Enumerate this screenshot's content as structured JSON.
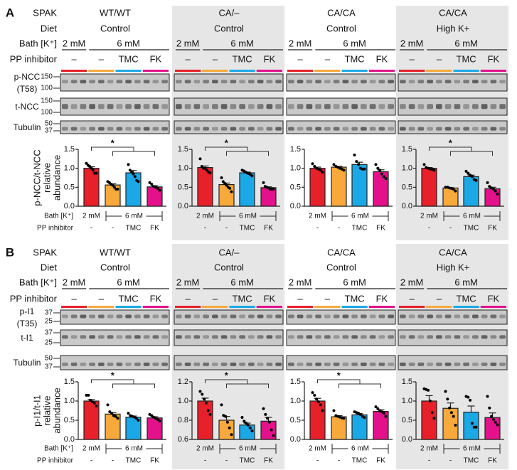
{
  "colors": {
    "lane_groups": [
      "#e8202a",
      "#f7a93b",
      "#1aa9e6",
      "#e3118a"
    ],
    "panel_bg": "#e6e6e6",
    "blot_bg": "#c9c9c9"
  },
  "row_labels": {
    "spak": "SPAK",
    "diet": "Diet",
    "bath": "Bath [K⁺]",
    "pp": "PP inhibitor"
  },
  "groups": [
    {
      "spak": "WT/WT",
      "diet": "Control",
      "bath": [
        "2 mM",
        "6 mM"
      ],
      "pp": [
        "–",
        "–",
        "TMC",
        "FK"
      ]
    },
    {
      "spak": "CA/–",
      "diet": "Control",
      "bath": [
        "2 mM",
        "6 mM"
      ],
      "pp": [
        "–",
        "–",
        "TMC",
        "FK"
      ]
    },
    {
      "spak": "CA/CA",
      "diet": "Control",
      "bath": [
        "2 mM",
        "6 mM"
      ],
      "pp": [
        "–",
        "–",
        "TMC",
        "FK"
      ]
    },
    {
      "spak": "CA/CA",
      "diet": "High K+",
      "bath": [
        "2 mM",
        "6 mM"
      ],
      "pp": [
        "–",
        "–",
        "TMC",
        "FK"
      ]
    }
  ],
  "panels": [
    {
      "letter": "A",
      "blots": [
        {
          "label": [
            "p-NCC",
            "(T58)"
          ],
          "markers": [
            "150",
            "100"
          ]
        },
        {
          "label": [
            "t-NCC"
          ],
          "markers": [
            "150",
            "100"
          ]
        },
        {
          "label": [
            "Tubulin"
          ],
          "markers": [
            "50",
            "37"
          ]
        }
      ]
    },
    {
      "letter": "B",
      "blots": [
        {
          "label": [
            "p-I1",
            "(T35)"
          ],
          "markers": [
            "37",
            "25"
          ]
        },
        {
          "label": [
            "t-I1"
          ],
          "markers": [
            "37",
            "25"
          ]
        },
        {
          "label": [
            "Tubulin"
          ],
          "markers": [
            "50",
            "37"
          ]
        }
      ]
    }
  ],
  "chart_data": [
    {
      "type": "bar",
      "panel": "A",
      "group": "WT/WT",
      "ylabel": [
        "p-NCC/t-NCC",
        "relative",
        "abundance"
      ],
      "categories": [
        "2 mM –",
        "6 mM –",
        "6 mM TMC",
        "6 mM FK"
      ],
      "values": [
        1.0,
        0.56,
        0.88,
        0.51
      ],
      "sem": [
        0.04,
        0.03,
        0.06,
        0.03
      ],
      "points": [
        [
          1.13,
          1.08,
          1.05,
          1.0,
          0.95,
          0.87,
          0.87
        ],
        [
          0.65,
          0.62,
          0.58,
          0.55,
          0.5,
          0.45,
          0.45
        ],
        [
          1.1,
          0.95,
          0.9,
          0.85,
          0.78,
          0.68,
          0.65
        ],
        [
          0.62,
          0.58,
          0.52,
          0.5,
          0.47,
          0.42
        ]
      ],
      "ylim": [
        0,
        1.5
      ],
      "yticks": [
        "0.0",
        "0.5",
        "1.0",
        "1.5"
      ],
      "significance": "*",
      "bath_title": "Bath [K⁺]",
      "pp_title": "PP inhibitor",
      "bath_labels": [
        "2 mM",
        "6 mM"
      ],
      "pp_labels": [
        "-",
        "-",
        "TMC",
        "FK"
      ]
    },
    {
      "type": "bar",
      "panel": "A",
      "group": "CA/–",
      "values": [
        1.02,
        0.57,
        0.88,
        0.49
      ],
      "sem": [
        0.04,
        0.04,
        0.02,
        0.02
      ],
      "points": [
        [
          1.25,
          1.05,
          1.0,
          1.0,
          0.95,
          0.9,
          0.88
        ],
        [
          0.75,
          0.65,
          0.6,
          0.55,
          0.5,
          0.47,
          0.38
        ],
        [
          0.95,
          0.93,
          0.9,
          0.88,
          0.86,
          0.83,
          0.8
        ],
        [
          0.62,
          0.52,
          0.5,
          0.48,
          0.45,
          0.45,
          0.45
        ]
      ],
      "ylim": [
        0,
        1.5
      ],
      "yticks": [
        "0.0",
        "0.5",
        "1.0",
        "1.5"
      ],
      "significance": "*",
      "bath_labels": [
        "2 mM",
        "6 mM"
      ],
      "pp_labels": [
        "-",
        "-",
        "TMC",
        "FK"
      ]
    },
    {
      "type": "bar",
      "panel": "A",
      "group": "CA/CA Control",
      "values": [
        1.0,
        1.03,
        1.1,
        0.91
      ],
      "sem": [
        0.03,
        0.02,
        0.06,
        0.05
      ],
      "points": [
        [
          1.12,
          1.05,
          1.0,
          0.98,
          0.95,
          0.9
        ],
        [
          1.1,
          1.05,
          1.03,
          1.0,
          0.98,
          0.95
        ],
        [
          1.35,
          1.18,
          1.1,
          1.0,
          0.98,
          0.98
        ],
        [
          1.1,
          1.0,
          0.95,
          0.85,
          0.78,
          0.73
        ]
      ],
      "ylim": [
        0,
        1.5
      ],
      "yticks": [
        "0.0",
        "0.5",
        "1.0",
        "1.5"
      ],
      "significance": "",
      "bath_labels": [
        "2 mM",
        "6 mM"
      ],
      "pp_labels": [
        "-",
        "-",
        "TMC",
        "FK"
      ]
    },
    {
      "type": "bar",
      "panel": "A",
      "group": "CA/CA High K+",
      "values": [
        1.0,
        0.48,
        0.78,
        0.46
      ],
      "sem": [
        0.02,
        0.01,
        0.04,
        0.04
      ],
      "points": [
        [
          1.1,
          1.02,
          1.0,
          0.98,
          0.97,
          0.95
        ],
        [
          0.5,
          0.5,
          0.48,
          0.47,
          0.45,
          0.4
        ],
        [
          0.92,
          0.87,
          0.82,
          0.78,
          0.7,
          0.68
        ],
        [
          0.62,
          0.52,
          0.48,
          0.45,
          0.4,
          0.32
        ]
      ],
      "ylim": [
        0,
        1.5
      ],
      "yticks": [
        "0.0",
        "0.5",
        "1.0",
        "1.5"
      ],
      "significance": "*",
      "bath_labels": [
        "2 mM",
        "6 mM"
      ],
      "pp_labels": [
        "-",
        "-",
        "TMC",
        "FK"
      ]
    },
    {
      "type": "bar",
      "panel": "B",
      "group": "WT/WT",
      "ylabel": [
        "p-I1/t-I1",
        "relative",
        "abundance"
      ],
      "values": [
        1.0,
        0.66,
        0.58,
        0.56
      ],
      "sem": [
        0.04,
        0.04,
        0.03,
        0.03
      ],
      "points": [
        [
          1.15,
          1.15,
          1.02,
          0.98,
          0.95,
          0.87
        ],
        [
          0.9,
          0.72,
          0.68,
          0.62,
          0.6,
          0.55
        ],
        [
          0.68,
          0.62,
          0.6,
          0.58,
          0.55,
          0.5
        ],
        [
          0.65,
          0.62,
          0.58,
          0.55,
          0.52,
          0.48
        ]
      ],
      "ylim": [
        0,
        1.5
      ],
      "yticks": [
        "0.0",
        "0.5",
        "1.0",
        "1.5"
      ],
      "significance": "*",
      "bath_title": "Bath [K⁺]",
      "pp_title": "PP inhibitor",
      "bath_labels": [
        "2 mM",
        "6 mM"
      ],
      "pp_labels": [
        "-",
        "-",
        "TMC",
        "FK"
      ]
    },
    {
      "type": "bar",
      "panel": "B",
      "group": "CA/–",
      "values": [
        1.0,
        0.8,
        0.75,
        0.79
      ],
      "sem": [
        0.03,
        0.04,
        0.02,
        0.04
      ],
      "points": [
        [
          1.1,
          1.07,
          1.02,
          0.98,
          0.9,
          0.86
        ],
        [
          0.96,
          0.85,
          0.84,
          0.78,
          0.72,
          0.65
        ],
        [
          0.83,
          0.79,
          0.77,
          0.75,
          0.72,
          0.69
        ],
        [
          0.92,
          0.86,
          0.82,
          0.78,
          0.7,
          0.64
        ]
      ],
      "ylim": [
        0.6,
        1.2
      ],
      "yticks": [
        "0.6",
        "0.8",
        "1.0",
        "1.2"
      ],
      "significance": "*",
      "bath_labels": [
        "2 mM",
        "6 mM"
      ],
      "pp_labels": [
        "-",
        "-",
        "TMC",
        "FK"
      ]
    },
    {
      "type": "bar",
      "panel": "B",
      "group": "CA/CA Control",
      "values": [
        1.0,
        0.59,
        0.64,
        0.73
      ],
      "sem": [
        0.07,
        0.03,
        0.03,
        0.04
      ],
      "points": [
        [
          1.22,
          1.15,
          1.05,
          0.98,
          0.9,
          0.75
        ],
        [
          0.75,
          0.62,
          0.6,
          0.58,
          0.56,
          0.55
        ],
        [
          0.72,
          0.7,
          0.68,
          0.65,
          0.6,
          0.57
        ],
        [
          0.85,
          0.8,
          0.75,
          0.72,
          0.68,
          0.6
        ]
      ],
      "ylim": [
        0,
        1.5
      ],
      "yticks": [
        "0.0",
        "0.5",
        "1.0",
        "1.5"
      ],
      "significance": "*",
      "bath_labels": [
        "2 mM",
        "6 mM"
      ],
      "pp_labels": [
        "-",
        "-",
        "TMC",
        "FK"
      ]
    },
    {
      "type": "bar",
      "panel": "B",
      "group": "CA/CA High K+",
      "values": [
        1.0,
        0.81,
        0.71,
        0.57
      ],
      "sem": [
        0.14,
        0.14,
        0.16,
        0.12
      ],
      "points": [
        [
          1.32,
          1.3,
          1.28,
          1.0,
          0.7,
          0.55
        ],
        [
          1.25,
          1.05,
          0.82,
          0.7,
          0.6,
          0.37
        ],
        [
          1.12,
          1.1,
          1.02,
          0.42,
          0.32,
          0.32
        ],
        [
          1.12,
          0.82,
          0.6,
          0.52,
          0.45,
          0.38
        ]
      ],
      "ylim": [
        0,
        1.5
      ],
      "yticks": [
        "0.0",
        "0.5",
        "1.0",
        "1.5"
      ],
      "significance": "",
      "bath_labels": [
        "2 mM",
        "6 mM"
      ],
      "pp_labels": [
        "-",
        "-",
        "TMC",
        "FK"
      ]
    }
  ]
}
